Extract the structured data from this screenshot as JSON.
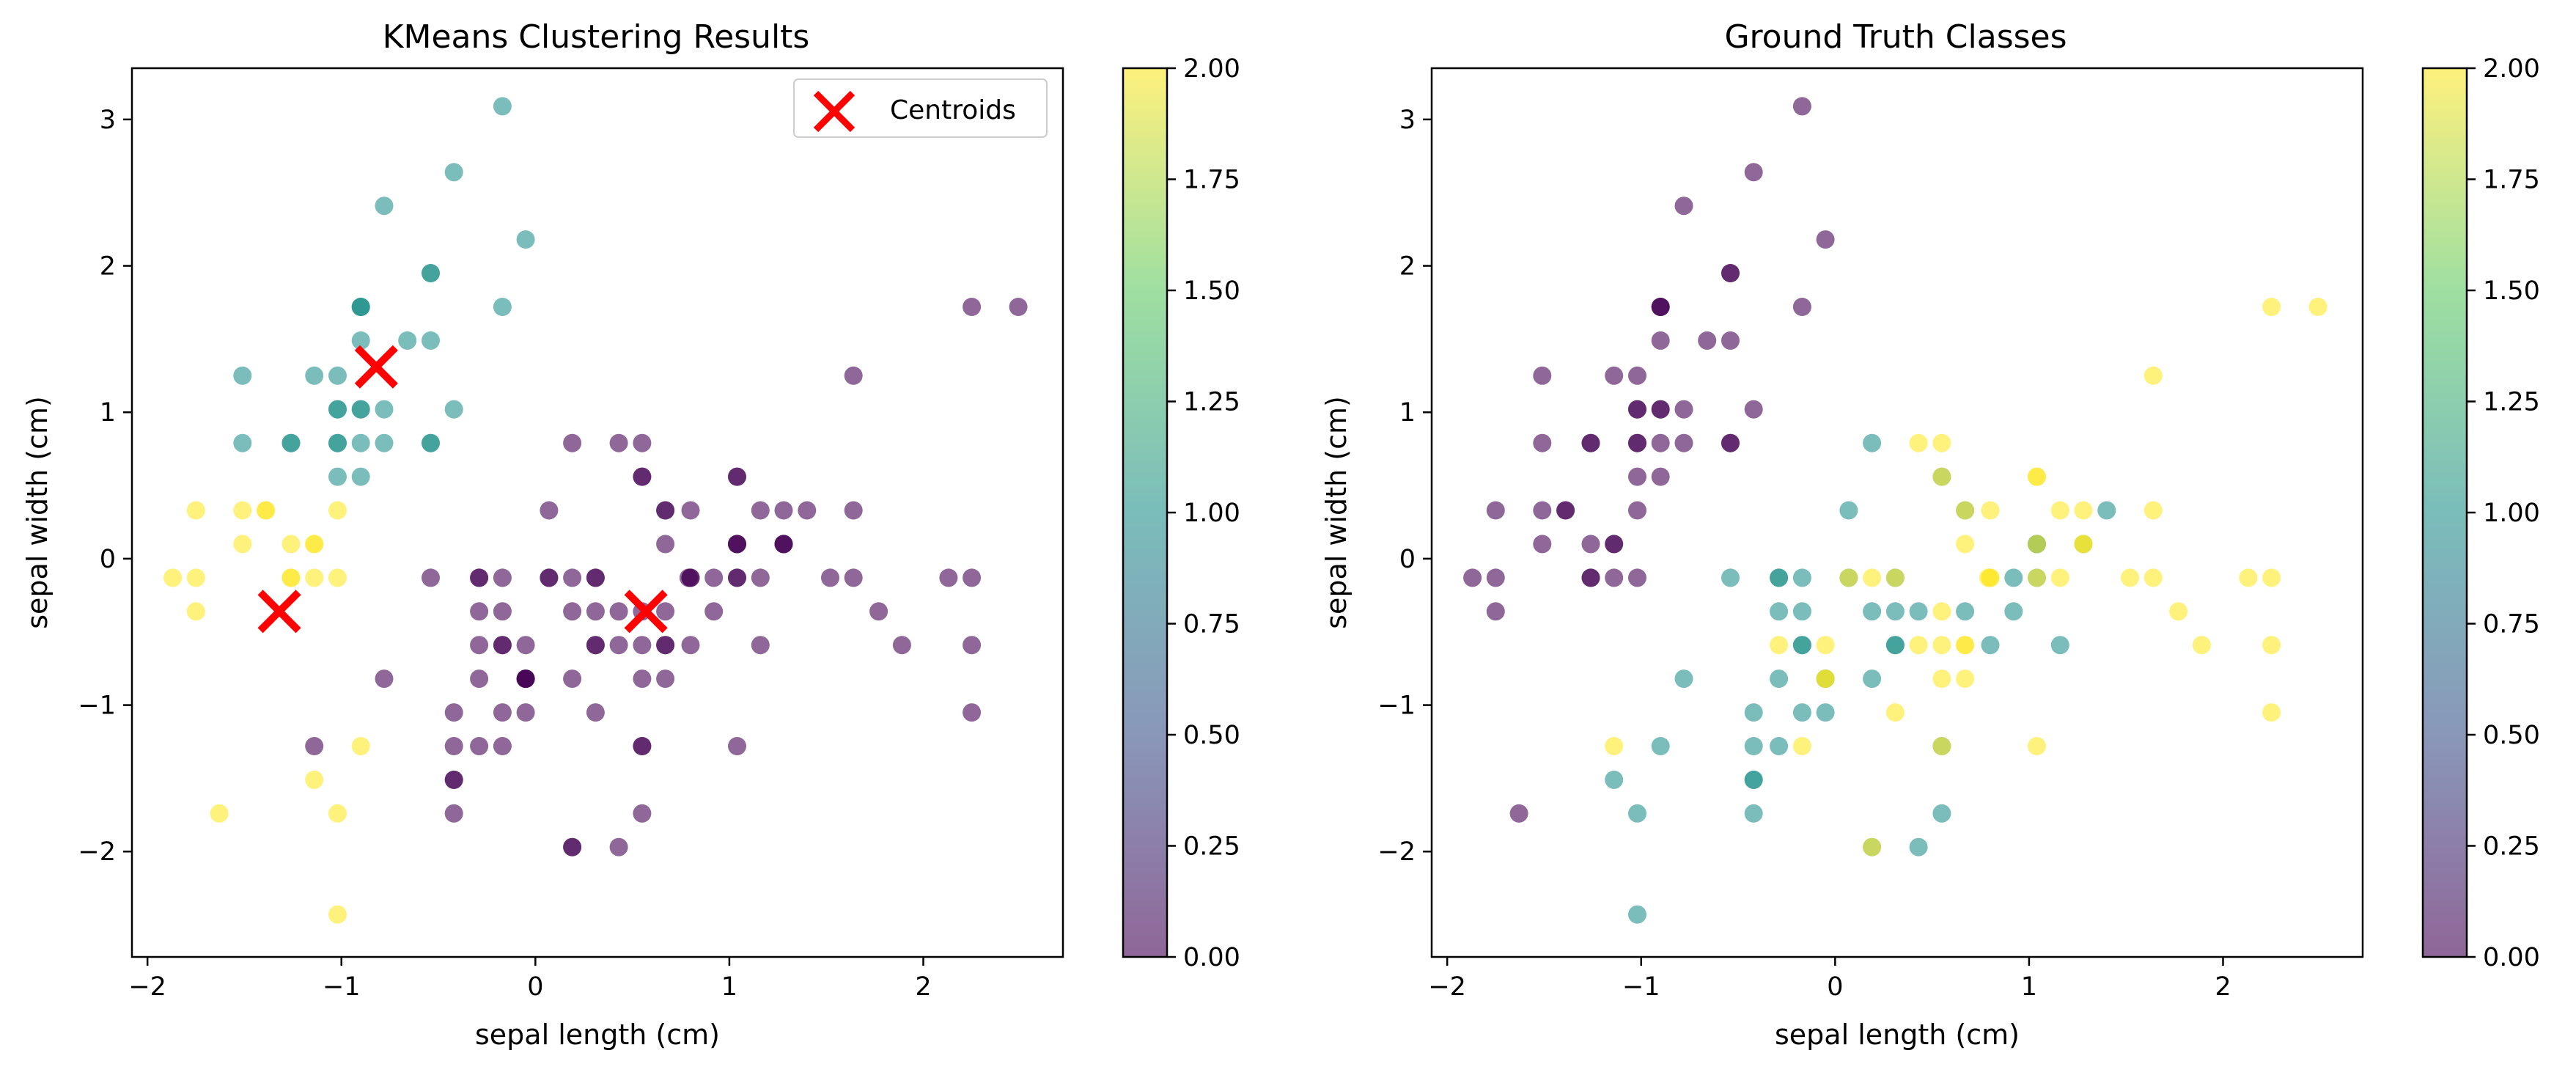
{
  "colorbar_ticks": [
    "0.00",
    "0.25",
    "0.50",
    "0.75",
    "1.00",
    "1.25",
    "1.50",
    "1.75",
    "2.00"
  ],
  "viridis_stops": [
    "#440154",
    "#3b528b",
    "#21918c",
    "#5ec962",
    "#fde725"
  ],
  "chart_data": [
    {
      "type": "scatter",
      "title": "KMeans Clustering Results",
      "xlabel": "sepal length (cm)",
      "ylabel": "sepal width (cm)",
      "xlim": [
        -2.08,
        2.72
      ],
      "ylim": [
        -2.72,
        3.35
      ],
      "x_ticks": [
        -2,
        -1,
        0,
        1,
        2
      ],
      "x_tick_labels": [
        "−2",
        "−1",
        "0",
        "1",
        "2"
      ],
      "y_ticks": [
        -2,
        -1,
        0,
        1,
        2,
        3
      ],
      "y_tick_labels": [
        "−2",
        "−1",
        "0",
        "1",
        "2",
        "3"
      ],
      "grid": false,
      "color_scale": {
        "min": 0,
        "max": 2,
        "colormap": "viridis",
        "alpha": 0.6
      },
      "legend": {
        "position": "top-right",
        "entries": [
          "Centroids"
        ]
      },
      "colorbar": {
        "range": [
          0,
          2
        ]
      },
      "marker_color": "#ff0000",
      "centroids": [
        {
          "x": -0.82,
          "y": 1.31
        },
        {
          "x": -1.32,
          "y": -0.36
        },
        {
          "x": 0.57,
          "y": -0.36
        }
      ],
      "points": [
        [
          -0.9,
          1.02,
          1
        ],
        [
          -1.14,
          -0.13,
          2
        ],
        [
          -1.39,
          0.33,
          2
        ],
        [
          -1.51,
          0.1,
          2
        ],
        [
          -1.02,
          1.25,
          1
        ],
        [
          -0.54,
          1.95,
          1
        ],
        [
          -1.51,
          0.79,
          1
        ],
        [
          -1.02,
          0.79,
          1
        ],
        [
          -1.75,
          -0.36,
          2
        ],
        [
          -1.14,
          0.1,
          2
        ],
        [
          -0.54,
          1.49,
          1
        ],
        [
          -1.26,
          0.79,
          1
        ],
        [
          -1.26,
          -0.13,
          2
        ],
        [
          -1.87,
          -0.13,
          2
        ],
        [
          -0.05,
          2.18,
          1
        ],
        [
          -0.17,
          3.09,
          1
        ],
        [
          -0.54,
          1.95,
          1
        ],
        [
          -0.9,
          1.02,
          1
        ],
        [
          -0.17,
          1.72,
          1
        ],
        [
          -0.9,
          1.72,
          1
        ],
        [
          -0.54,
          0.79,
          1
        ],
        [
          -0.9,
          1.49,
          1
        ],
        [
          -1.51,
          1.25,
          1
        ],
        [
          -0.9,
          0.56,
          1
        ],
        [
          -1.26,
          0.79,
          1
        ],
        [
          -1.02,
          -0.13,
          2
        ],
        [
          -1.02,
          0.79,
          1
        ],
        [
          -0.78,
          1.02,
          1
        ],
        [
          -0.78,
          0.79,
          1
        ],
        [
          -1.39,
          0.33,
          2
        ],
        [
          -1.26,
          0.1,
          2
        ],
        [
          -0.54,
          0.79,
          1
        ],
        [
          -0.78,
          2.41,
          1
        ],
        [
          -0.42,
          2.64,
          1
        ],
        [
          -1.14,
          0.1,
          2
        ],
        [
          -1.02,
          0.33,
          2
        ],
        [
          -0.42,
          1.02,
          1
        ],
        [
          -1.14,
          1.25,
          1
        ],
        [
          -1.75,
          -0.13,
          2
        ],
        [
          -0.9,
          0.79,
          1
        ],
        [
          -1.02,
          1.02,
          1
        ],
        [
          -1.63,
          -1.74,
          2
        ],
        [
          -1.75,
          0.33,
          2
        ],
        [
          -1.02,
          1.02,
          1
        ],
        [
          -0.9,
          1.72,
          1
        ],
        [
          -1.26,
          -0.13,
          2
        ],
        [
          -0.9,
          1.72,
          1
        ],
        [
          -1.51,
          0.33,
          2
        ],
        [
          -0.66,
          1.49,
          1
        ],
        [
          -1.02,
          0.56,
          1
        ],
        [
          1.4,
          0.33,
          0
        ],
        [
          0.67,
          0.33,
          0
        ],
        [
          1.28,
          0.1,
          0
        ],
        [
          -0.42,
          -1.74,
          0
        ],
        [
          0.8,
          -0.59,
          0
        ],
        [
          -0.17,
          -0.59,
          0
        ],
        [
          0.55,
          0.56,
          0
        ],
        [
          -1.14,
          -1.51,
          2
        ],
        [
          0.92,
          -0.36,
          0
        ],
        [
          -0.78,
          -0.82,
          0
        ],
        [
          -1.02,
          -2.43,
          2
        ],
        [
          0.07,
          -0.13,
          0
        ],
        [
          0.19,
          -1.97,
          0
        ],
        [
          0.31,
          -0.36,
          0
        ],
        [
          -0.29,
          -0.36,
          0
        ],
        [
          1.04,
          0.1,
          0
        ],
        [
          -0.29,
          -0.13,
          0
        ],
        [
          -0.05,
          -0.82,
          0
        ],
        [
          0.43,
          -1.97,
          0
        ],
        [
          -0.29,
          -1.28,
          0
        ],
        [
          0.07,
          0.33,
          0
        ],
        [
          0.31,
          -0.59,
          0
        ],
        [
          0.55,
          -1.28,
          0
        ],
        [
          0.31,
          -0.59,
          0
        ],
        [
          0.67,
          -0.36,
          0
        ],
        [
          0.92,
          -0.13,
          0
        ],
        [
          1.16,
          -0.59,
          0
        ],
        [
          1.04,
          -0.13,
          0
        ],
        [
          0.19,
          -0.36,
          0
        ],
        [
          -0.17,
          -1.05,
          0
        ],
        [
          -0.42,
          -1.51,
          0
        ],
        [
          -0.42,
          -1.51,
          0
        ],
        [
          -0.05,
          -0.82,
          0
        ],
        [
          0.19,
          -0.82,
          0
        ],
        [
          -0.54,
          -0.13,
          0
        ],
        [
          0.19,
          0.79,
          0
        ],
        [
          1.04,
          0.1,
          0
        ],
        [
          0.55,
          -1.74,
          0
        ],
        [
          -0.29,
          -0.13,
          0
        ],
        [
          -0.42,
          -1.28,
          0
        ],
        [
          -0.42,
          -1.05,
          0
        ],
        [
          0.31,
          -0.13,
          0
        ],
        [
          -0.05,
          -1.05,
          0
        ],
        [
          -1.02,
          -1.74,
          2
        ],
        [
          -0.29,
          -0.82,
          0
        ],
        [
          -0.17,
          -0.13,
          0
        ],
        [
          -0.17,
          -0.36,
          0
        ],
        [
          0.43,
          -0.36,
          0
        ],
        [
          -0.9,
          -1.28,
          2
        ],
        [
          -0.17,
          -0.59,
          0
        ],
        [
          0.55,
          0.56,
          0
        ],
        [
          -0.05,
          -0.82,
          0
        ],
        [
          1.52,
          -0.13,
          0
        ],
        [
          0.55,
          -0.36,
          0
        ],
        [
          0.8,
          -0.13,
          0
        ],
        [
          2.13,
          -0.13,
          0
        ],
        [
          -1.14,
          -1.28,
          0
        ],
        [
          1.77,
          -0.36,
          0
        ],
        [
          1.04,
          -1.28,
          0
        ],
        [
          1.64,
          1.25,
          0
        ],
        [
          0.8,
          0.33,
          0
        ],
        [
          0.67,
          -0.82,
          0
        ],
        [
          1.16,
          -0.13,
          0
        ],
        [
          -0.17,
          -1.28,
          0
        ],
        [
          -0.05,
          -0.59,
          0
        ],
        [
          0.67,
          0.33,
          0
        ],
        [
          0.8,
          -0.13,
          0
        ],
        [
          2.25,
          1.72,
          0
        ],
        [
          2.25,
          -1.05,
          0
        ],
        [
          0.19,
          -1.97,
          0
        ],
        [
          1.28,
          0.33,
          0
        ],
        [
          -0.29,
          -0.59,
          0
        ],
        [
          2.25,
          -0.59,
          0
        ],
        [
          0.55,
          -0.82,
          0
        ],
        [
          1.04,
          0.56,
          0
        ],
        [
          1.64,
          0.33,
          0
        ],
        [
          0.43,
          -0.59,
          0
        ],
        [
          0.31,
          -0.13,
          0
        ],
        [
          0.67,
          -0.59,
          0
        ],
        [
          1.64,
          -0.13,
          0
        ],
        [
          1.89,
          -0.59,
          0
        ],
        [
          2.49,
          1.72,
          0
        ],
        [
          0.67,
          -0.59,
          0
        ],
        [
          0.55,
          -0.59,
          0
        ],
        [
          0.31,
          -1.05,
          0
        ],
        [
          2.25,
          -0.13,
          0
        ],
        [
          0.55,
          0.79,
          0
        ],
        [
          0.67,
          0.1,
          0
        ],
        [
          0.19,
          -0.13,
          0
        ],
        [
          1.28,
          0.1,
          0
        ],
        [
          1.04,
          0.1,
          0
        ],
        [
          1.28,
          0.1,
          0
        ],
        [
          -0.05,
          -0.82,
          0
        ],
        [
          1.16,
          0.33,
          0
        ],
        [
          1.04,
          0.56,
          0
        ],
        [
          1.04,
          -0.13,
          0
        ],
        [
          0.55,
          -1.28,
          0
        ],
        [
          0.79,
          -0.13,
          0
        ],
        [
          0.43,
          0.79,
          0
        ],
        [
          0.07,
          -0.13,
          0
        ]
      ]
    },
    {
      "type": "scatter",
      "title": "Ground Truth Classes",
      "xlabel": "sepal length (cm)",
      "ylabel": "sepal width (cm)",
      "xlim": [
        -2.08,
        2.72
      ],
      "ylim": [
        -2.72,
        3.35
      ],
      "x_ticks": [
        -2,
        -1,
        0,
        1,
        2
      ],
      "x_tick_labels": [
        "−2",
        "−1",
        "0",
        "1",
        "2"
      ],
      "y_ticks": [
        -2,
        -1,
        0,
        1,
        2,
        3
      ],
      "y_tick_labels": [
        "−2",
        "−1",
        "0",
        "1",
        "2",
        "3"
      ],
      "grid": false,
      "color_scale": {
        "min": 0,
        "max": 2,
        "colormap": "viridis",
        "alpha": 0.6
      },
      "colorbar": {
        "range": [
          0,
          2
        ]
      },
      "note_points_class_by_index": "first 50 class 0, next 50 class 1, last 50 class 2",
      "points_source": "same x/y as panel 1, class by index"
    }
  ]
}
